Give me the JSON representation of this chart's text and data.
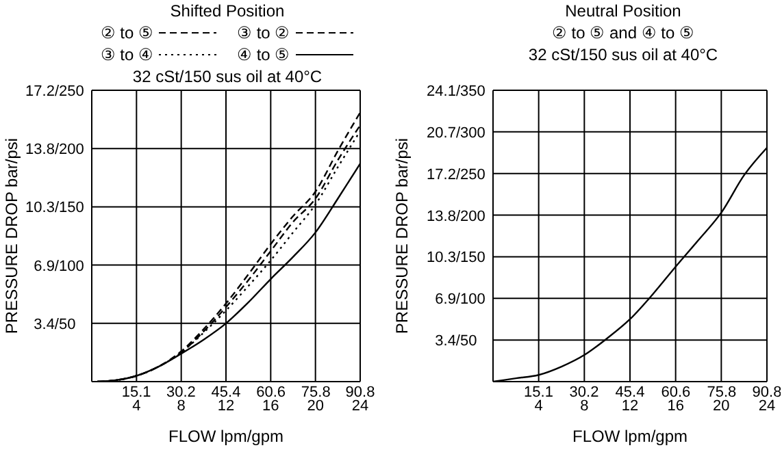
{
  "chart_data": [
    {
      "type": "line",
      "title": "Shifted Position",
      "subtitle": "32 cSt/150 sus oil at 40°C",
      "xlabel": "FLOW lpm/gpm",
      "y2label": "PRESSURE DROP bar/psi",
      "legend": "top",
      "grid": true,
      "marker": "none",
      "x": [
        0.5,
        2,
        4,
        6,
        8,
        10,
        12,
        14,
        16,
        18,
        20,
        22,
        24
      ],
      "series": [
        {
          "name": "② to ⑤",
          "color": "#000000",
          "line_style": "dashed",
          "values": [
            0,
            1,
            5,
            13,
            25,
            43,
            64,
            87,
            112,
            137,
            157,
            190,
            220
          ]
        },
        {
          "name": "③ to ②",
          "color": "#000000",
          "line_style": "dashed",
          "values": [
            0,
            1,
            5,
            13,
            26,
            45,
            67,
            92,
            118,
            142,
            163,
            198,
            231
          ]
        },
        {
          "name": "③ to ④",
          "color": "#000000",
          "line_style": "dotted",
          "values": [
            0,
            1,
            5,
            13,
            25,
            42,
            61,
            82,
            104,
            128,
            152,
            184,
            215
          ]
        },
        {
          "name": "④ to ⑤",
          "color": "#000000",
          "line_style": "solid",
          "values": [
            0,
            1,
            5,
            13,
            24,
            36,
            50,
            68,
            88,
            107,
            128,
            157,
            187
          ]
        }
      ],
      "xlim": [
        0,
        24
      ],
      "xticks": [
        4,
        8,
        12,
        16,
        20,
        24
      ],
      "x2lim": [
        0,
        90.8
      ],
      "x2ticks": [
        15.1,
        30.2,
        45.4,
        60.6,
        75.8,
        90.8
      ],
      "ylim": [
        0,
        250
      ],
      "yticks": [
        50,
        100,
        150,
        200,
        250
      ],
      "y2lim": [
        0,
        17.24
      ],
      "y2ticks": [
        {
          "value": 3.45,
          "label": "3.4/"
        },
        {
          "value": 6.9,
          "label": "6.9/"
        },
        {
          "value": 10.34,
          "label": "10.3/"
        },
        {
          "value": 13.79,
          "label": "13.8/"
        },
        {
          "value": 17.24,
          "label": "17.2/"
        }
      ]
    },
    {
      "type": "line",
      "title": "Neutral Position",
      "subtitle": "② to ⑤ and ④ to ⑤\n32 cSt/150 sus oil at 40°C",
      "xlabel": "FLOW lpm/gpm",
      "y2label": "PRESSURE DROP bar/psi",
      "grid": true,
      "marker": "none",
      "x": [
        0,
        2,
        4,
        6,
        8,
        10,
        12,
        14,
        16,
        18,
        20,
        22,
        24
      ],
      "series": [
        {
          "color": "#000000",
          "line_style": "solid",
          "values": [
            0,
            4,
            8,
            18,
            32,
            52,
            75,
            105,
            138,
            170,
            203,
            248,
            281
          ]
        }
      ],
      "xlim": [
        0,
        24
      ],
      "xticks": [
        4,
        8,
        12,
        16,
        20,
        24
      ],
      "x2lim": [
        0,
        90.8
      ],
      "x2ticks": [
        15.1,
        30.2,
        45.4,
        60.6,
        75.8,
        90.8
      ],
      "ylim": [
        0,
        350
      ],
      "yticks": [
        50,
        100,
        150,
        200,
        250,
        300,
        350
      ],
      "y2lim": [
        0,
        24.13
      ],
      "y2ticks": [
        {
          "value": 3.45,
          "label": "3.4/"
        },
        {
          "value": 6.9,
          "label": "6.9/"
        },
        {
          "value": 10.34,
          "label": "10.3/"
        },
        {
          "value": 13.79,
          "label": "13.8/"
        },
        {
          "value": 17.24,
          "label": "17.2/"
        },
        {
          "value": 20.68,
          "label": "20.7/"
        },
        {
          "value": 24.13,
          "label": "24.1/"
        }
      ]
    }
  ]
}
